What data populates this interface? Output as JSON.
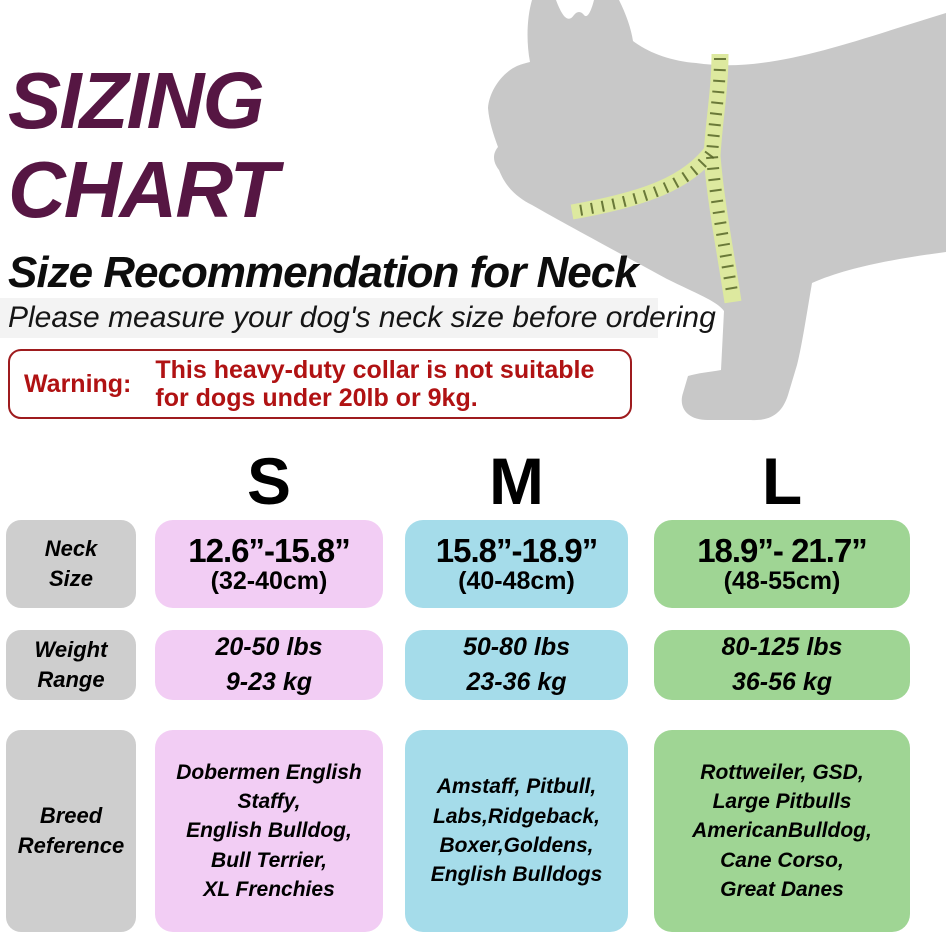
{
  "title": {
    "lines": [
      "SIZING",
      "CHART"
    ],
    "color": "#561643"
  },
  "subtitle": "Size Recommendation for Neck",
  "note": "Please measure your dog's neck size before ordering",
  "warning": {
    "label": "Warning:",
    "lines": [
      "This heavy-duty collar is not suitable",
      "for dogs under 20lb or 9kg."
    ],
    "color": "#b01213",
    "border_color": "#9e1b1e"
  },
  "graphic": {
    "icon": "dog-silhouette-with-measuring-tape",
    "body_color": "#c8c8c8",
    "tape_color": "#dde99f",
    "tape_tick_color": "#566527"
  },
  "table": {
    "label_bg": "#cecece",
    "row_labels": [
      {
        "lines": [
          "Neck",
          "Size"
        ]
      },
      {
        "lines": [
          "Weight",
          "Range"
        ]
      },
      {
        "lines": [
          "Breed",
          "Reference"
        ]
      }
    ],
    "columns": [
      {
        "header": "S",
        "bg": "#f2cdf4",
        "neck_in": "12.6”-15.8”",
        "neck_cm": "(32-40cm)",
        "weight_lines": [
          "20-50 lbs",
          "9-23 kg"
        ],
        "breed_lines": [
          "Dobermen English",
          "Staffy,",
          "English Bulldog,",
          "Bull Terrier,",
          "XL Frenchies"
        ]
      },
      {
        "header": "M",
        "bg": "#a5dcea",
        "neck_in": "15.8”-18.9”",
        "neck_cm": "(40-48cm)",
        "weight_lines": [
          "50-80 lbs",
          "23-36 kg"
        ],
        "breed_lines": [
          "Amstaff, Pitbull,",
          "Labs,Ridgeback,",
          "Boxer,Goldens,",
          "English Bulldogs"
        ]
      },
      {
        "header": "L",
        "bg": "#9fd594",
        "neck_in": "18.9”- 21.7”",
        "neck_cm": "(48-55cm)",
        "weight_lines": [
          "80-125 lbs",
          "36-56 kg"
        ],
        "breed_lines": [
          "Rottweiler, GSD,",
          "Large Pitbulls",
          "AmericanBulldog,",
          "Cane Corso,",
          "Great Danes"
        ]
      }
    ]
  },
  "chart_data": {
    "type": "table",
    "title": "SIZING CHART — Size Recommendation for Neck",
    "note": "Please measure your dog's neck size before ordering",
    "warning": "Warning: This heavy-duty collar is not suitable for dogs under 20lb or 9kg.",
    "columns": [
      "",
      "S",
      "M",
      "L"
    ],
    "rows": [
      [
        "Neck Size",
        "12.6”-15.8” (32-40cm)",
        "15.8”-18.9” (40-48cm)",
        "18.9”- 21.7” (48-55cm)"
      ],
      [
        "Weight Range",
        "20-50 lbs / 9-23 kg",
        "50-80 lbs / 23-36 kg",
        "80-125 lbs / 36-56 kg"
      ],
      [
        "Breed Reference",
        "Dobermen English Staffy, English Bulldog, Bull Terrier, XL Frenchies",
        "Amstaff, Pitbull, Labs, Ridgeback, Boxer, Goldens, English Bulldogs",
        "Rottweiler, GSD, Large Pitbulls, AmericanBulldog, Cane Corso, Great Danes"
      ]
    ]
  }
}
